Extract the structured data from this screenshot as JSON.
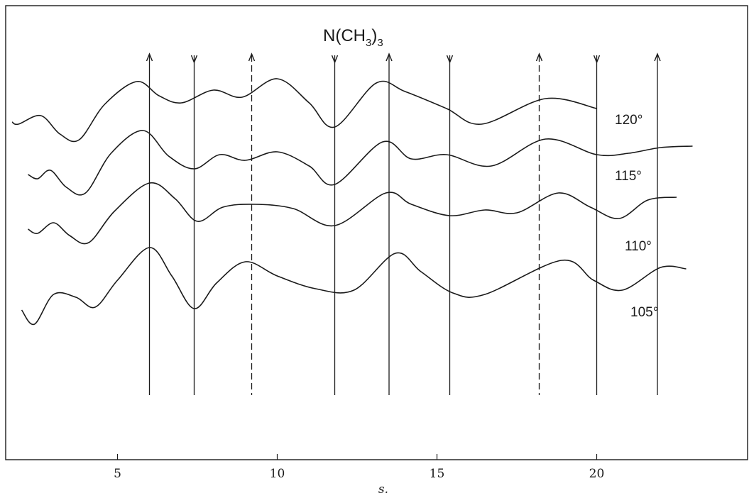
{
  "chart_data": {
    "type": "line",
    "title": "N(CH3)3",
    "title_main": "N(CH",
    "title_sub1": "3",
    "title_close": ")",
    "title_sub2": "3",
    "xlabel": "s.",
    "ylabel": "",
    "xlim": [
      1.5,
      23
    ],
    "grid": false,
    "x_ticks": [
      "5",
      "10",
      "15",
      "20"
    ],
    "x_tick_values": [
      5,
      10,
      15,
      20
    ],
    "reference_lines": [
      {
        "x": 6.0,
        "style": "solid",
        "arrow": "up"
      },
      {
        "x": 7.4,
        "style": "solid",
        "arrow": "down"
      },
      {
        "x": 9.2,
        "style": "dashed",
        "arrow": "up"
      },
      {
        "x": 11.8,
        "style": "solid",
        "arrow": "down"
      },
      {
        "x": 13.5,
        "style": "solid",
        "arrow": "up"
      },
      {
        "x": 15.4,
        "style": "solid",
        "arrow": "down"
      },
      {
        "x": 18.2,
        "style": "dashed",
        "arrow": "up"
      },
      {
        "x": 20.0,
        "style": "solid",
        "arrow": "down"
      },
      {
        "x": 21.9,
        "style": "solid",
        "arrow": "up"
      }
    ],
    "series": [
      {
        "name": "120°",
        "x": [
          1.7,
          1.9,
          2.6,
          3.2,
          3.8,
          4.6,
          5.6,
          6.3,
          7.0,
          8.0,
          8.9,
          10.0,
          11.0,
          11.8,
          13.1,
          14.0,
          15.3,
          16.4,
          18.4,
          20.0
        ],
        "y": [
          1.15,
          1.0,
          1.6,
          0.3,
          -0.1,
          2.4,
          4.0,
          3.0,
          2.5,
          3.4,
          2.9,
          4.2,
          2.5,
          0.8,
          3.9,
          3.3,
          2.1,
          1.0,
          2.8,
          2.1
        ]
      },
      {
        "name": "115°",
        "x": [
          2.2,
          2.5,
          2.9,
          3.4,
          4.0,
          4.8,
          5.8,
          6.6,
          7.4,
          8.2,
          9.0,
          10.0,
          11.0,
          11.8,
          13.3,
          14.2,
          15.3,
          16.7,
          18.4,
          20.0,
          21.0,
          22.0,
          23.0
        ],
        "y": [
          1.2,
          0.9,
          1.5,
          0.3,
          -0.1,
          2.7,
          4.3,
          2.5,
          1.6,
          2.6,
          2.2,
          2.8,
          1.8,
          0.5,
          3.5,
          2.3,
          2.6,
          1.8,
          3.7,
          2.6,
          2.7,
          3.1,
          3.2
        ]
      },
      {
        "name": "110°",
        "x": [
          2.2,
          2.5,
          3.0,
          3.5,
          4.1,
          4.9,
          6.0,
          6.8,
          7.5,
          8.3,
          9.3,
          10.5,
          11.8,
          13.4,
          14.2,
          15.4,
          16.5,
          17.5,
          18.8,
          19.8,
          20.7,
          21.6,
          22.5
        ],
        "y": [
          0.85,
          0.55,
          1.3,
          0.4,
          -0.1,
          2.1,
          4.1,
          3.0,
          1.4,
          2.4,
          2.6,
          2.3,
          1.1,
          3.4,
          2.6,
          1.8,
          2.2,
          2.0,
          3.4,
          2.4,
          1.6,
          2.9,
          3.1
        ]
      },
      {
        "name": "105°",
        "x": [
          2.0,
          2.4,
          3.0,
          3.7,
          4.3,
          5.0,
          6.0,
          6.7,
          7.4,
          8.1,
          9.0,
          10.0,
          11.2,
          12.4,
          13.7,
          14.5,
          15.5,
          16.5,
          18.9,
          19.9,
          20.8,
          22.0,
          22.8
        ],
        "y": [
          -0.6,
          -1.6,
          0.5,
          0.3,
          -0.4,
          1.5,
          3.8,
          1.8,
          -0.5,
          1.3,
          2.8,
          1.8,
          0.9,
          0.8,
          3.4,
          2.1,
          0.6,
          0.5,
          2.9,
          1.5,
          0.8,
          2.4,
          2.3
        ]
      }
    ]
  }
}
